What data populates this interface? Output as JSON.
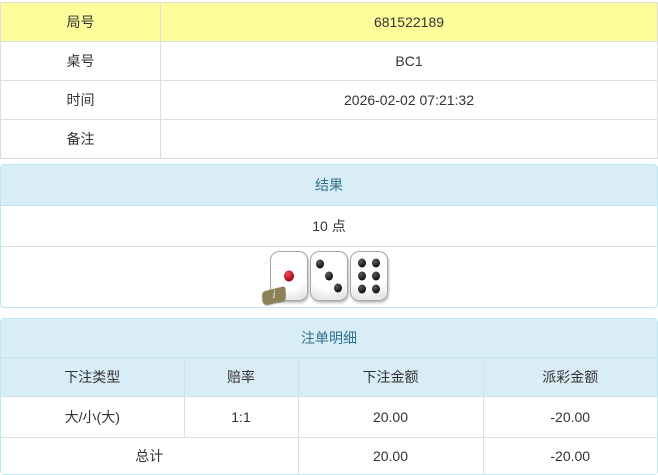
{
  "info_table": {
    "rows": [
      {
        "label": "局号",
        "value": "681522189"
      },
      {
        "label": "桌号",
        "value": "BC1"
      },
      {
        "label": "时间",
        "value": "2026-02-02 07:21:32"
      },
      {
        "label": "备注",
        "value": ""
      }
    ]
  },
  "result_panel": {
    "title": "结果",
    "points": "10 点",
    "dice": [
      1,
      3,
      6
    ],
    "info_badge": "i"
  },
  "bet_panel": {
    "title": "注单明细",
    "columns": [
      "下注类型",
      "赔率",
      "下注金额",
      "派彩金额"
    ],
    "rows": [
      {
        "type": "大/小(大)",
        "odds": "1:1",
        "amount": "20.00",
        "payout": "-20.00"
      }
    ],
    "total": {
      "label": "总计",
      "amount": "20.00",
      "payout": "-20.00"
    }
  },
  "colors": {
    "highlight_row_bg": "#fdfd9c",
    "panel_border": "#bce8f1",
    "panel_heading_bg": "#d9edf7",
    "panel_heading_text": "#31708f",
    "table_border": "#dddddd",
    "negative_or_odds_text": "#ff0000",
    "body_text": "#333333",
    "die_pip_black": "#141414",
    "die_pip_red": "#a40613"
  }
}
